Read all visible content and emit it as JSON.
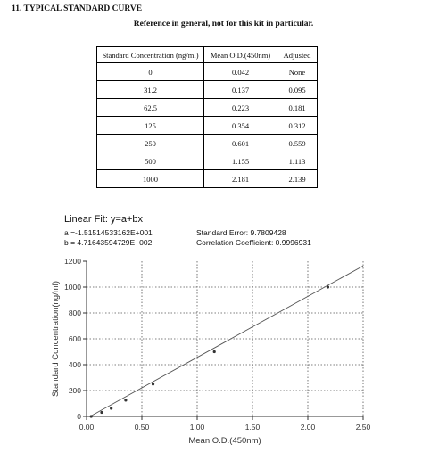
{
  "heading": "11. TYPICAL STANDARD CURVE",
  "subtitle": "Reference in general, not for this kit in particular.",
  "table": {
    "headers": [
      "Standard Concentration (ng/ml)",
      "Mean O.D.(450nm)",
      "Adjusted"
    ],
    "rows": [
      [
        "0",
        "0.042",
        "None"
      ],
      [
        "31.2",
        "0.137",
        "0.095"
      ],
      [
        "62.5",
        "0.223",
        "0.181"
      ],
      [
        "125",
        "0.354",
        "0.312"
      ],
      [
        "250",
        "0.601",
        "0.559"
      ],
      [
        "500",
        "1.155",
        "1.113"
      ],
      [
        "1000",
        "2.181",
        "2.139"
      ]
    ]
  },
  "fit": {
    "title": "Linear Fit: y=a+bx",
    "a": "a =-1.51514533162E+001",
    "b": "b = 4.71643594729E+002",
    "standard_error": "Standard Error: 9.7809428",
    "correlation": "Correlation Coefficient: 0.9996931"
  },
  "chart_data": {
    "type": "scatter",
    "title": "",
    "xlabel": "Mean O.D.(450nm)",
    "ylabel": "Standard Concentration(ng/ml)",
    "xlim": [
      0,
      2.5
    ],
    "ylim": [
      0,
      1200
    ],
    "xticks": [
      "0.00",
      "0.50",
      "1.00",
      "1.50",
      "2.00",
      "2.50"
    ],
    "yticks": [
      "0",
      "200",
      "400",
      "600",
      "800",
      "1000",
      "1200"
    ],
    "grid": true,
    "points": [
      {
        "x": 0.042,
        "y": 0
      },
      {
        "x": 0.137,
        "y": 31.2
      },
      {
        "x": 0.223,
        "y": 62.5
      },
      {
        "x": 0.354,
        "y": 125
      },
      {
        "x": 0.601,
        "y": 250
      },
      {
        "x": 1.155,
        "y": 500
      },
      {
        "x": 2.181,
        "y": 1000
      }
    ],
    "fit_line": {
      "intercept": -15.1514533162,
      "slope": 471.643594729
    },
    "colors": {
      "axis": "#333333",
      "grid": "#555555",
      "line": "#555555",
      "points": "#333333"
    }
  }
}
